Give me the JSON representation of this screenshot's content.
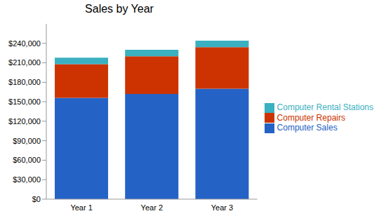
{
  "chart_data": {
    "type": "bar",
    "title": "Sales by Year",
    "stacked": true,
    "legend": "right",
    "grid": false,
    "categories": [
      "Year 1",
      "Year 2",
      "Year 3"
    ],
    "series": [
      {
        "name": "Computer Sales",
        "color": "#2462c6",
        "values": [
          156000,
          162000,
          170000
        ]
      },
      {
        "name": "Computer Repairs",
        "color": "#cc3300",
        "values": [
          52000,
          58000,
          64000
        ]
      },
      {
        "name": "Computer Rental Stations",
        "color": "#3ab0c0",
        "values": [
          10000,
          10000,
          10000
        ]
      }
    ],
    "ylim": [
      0,
      270000
    ],
    "yticks": [
      {
        "value": 0,
        "label": "$0"
      },
      {
        "value": 30000,
        "label": "$30,000"
      },
      {
        "value": 60000,
        "label": "$60,000"
      },
      {
        "value": 90000,
        "label": "$90,000"
      },
      {
        "value": 120000,
        "label": "$120,000"
      },
      {
        "value": 150000,
        "label": "$150,000"
      },
      {
        "value": 180000,
        "label": "$180,000"
      },
      {
        "value": 210000,
        "label": "$210,000"
      },
      {
        "value": 240000,
        "label": "$240,000"
      }
    ]
  }
}
